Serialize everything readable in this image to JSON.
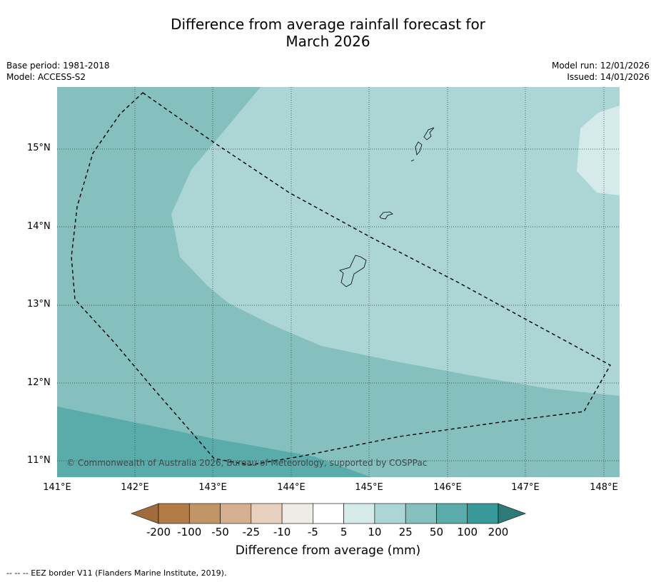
{
  "title_line1": "Difference from average rainfall forecast for",
  "title_line2": "March 2026",
  "meta_left": [
    "Base period: 1981-2018",
    "Model: ACCESS-S2"
  ],
  "meta_right": [
    "Model run: 12/01/2026",
    "Issued: 14/01/2026"
  ],
  "lat_labels": [
    "15°N",
    "14°N",
    "13°N",
    "12°N",
    "11°N"
  ],
  "lon_labels": [
    "141°E",
    "142°E",
    "143°E",
    "144°E",
    "145°E",
    "146°E",
    "147°E",
    "148°E"
  ],
  "copyright": "© Commonwealth of Australia 2026, Bureau of Meteorology, supported by COSPPac",
  "colorbar": {
    "labels": [
      "-200",
      "-100",
      "-50",
      "-25",
      "-10",
      "-5",
      "5",
      "10",
      "25",
      "50",
      "100",
      "200"
    ],
    "colors": [
      "#a06c3c",
      "#b37b45",
      "#c29567",
      "#d5b090",
      "#e7d1be",
      "#efebe6",
      "#ffffff",
      "#d4ebe9",
      "#acd6d6",
      "#85c0bf",
      "#5aacab",
      "#38999a",
      "#2d7a77"
    ],
    "title": "Difference from average (mm)"
  },
  "footer": "--  --  -- EEZ border V11 (Flanders Marine Institute, 2019).",
  "map_colors": {
    "ocean_25_50": "#85c0bf",
    "band_10_25": "#acd6d6",
    "band_5_10": "#d4ebe9",
    "band_50_100": "#5aacab"
  }
}
